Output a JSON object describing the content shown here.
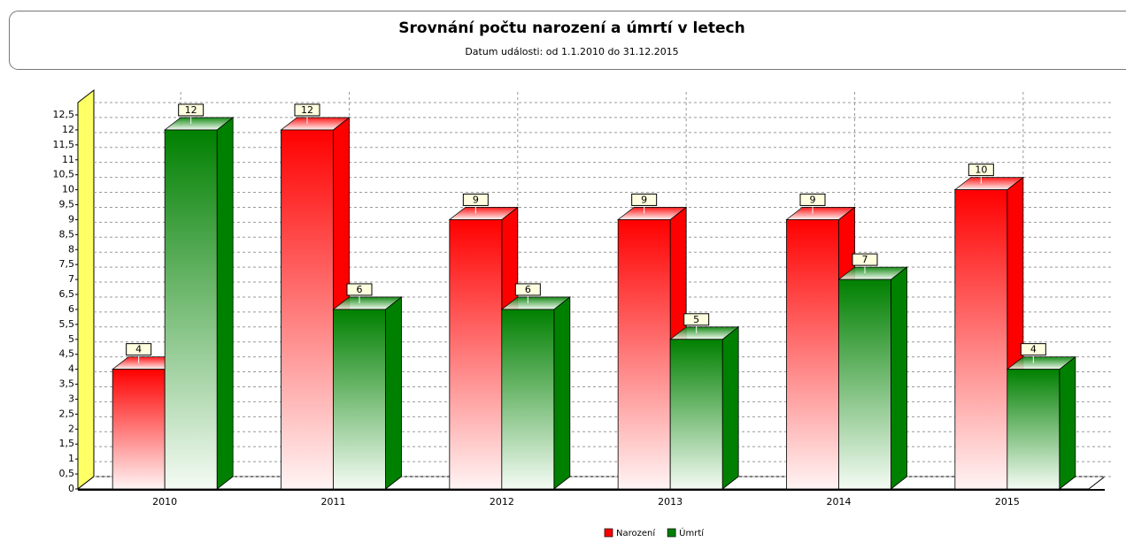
{
  "chart_data": {
    "type": "bar3d",
    "title": "Srovnání počtu narození a úmrtí v letech",
    "subtitle": "Datum události: od 1.1.2010 do 31.12.2015",
    "categories": [
      "2010",
      "2011",
      "2012",
      "2013",
      "2014",
      "2015"
    ],
    "series": [
      {
        "name": "Narození",
        "color": "#ff0000",
        "values": [
          4,
          12,
          9,
          9,
          9,
          10
        ]
      },
      {
        "name": "Úmrtí",
        "color": "#008000",
        "values": [
          12,
          6,
          6,
          5,
          7,
          4
        ]
      }
    ],
    "ylim": [
      0,
      12.5
    ],
    "yticks": [
      0,
      {
        "value": 0.5,
        "label": "0,5"
      },
      1,
      {
        "value": 1.5,
        "label": "1,5"
      },
      2,
      {
        "value": 2.5,
        "label": "2,5"
      },
      3,
      {
        "value": 3.5,
        "label": "3,5"
      },
      4,
      {
        "value": 4.5,
        "label": "4,5"
      },
      5,
      {
        "value": 5.5,
        "label": "5,5"
      },
      6,
      {
        "value": 6.5,
        "label": "6,5"
      },
      7,
      {
        "value": 7.5,
        "label": "7,5"
      },
      8,
      {
        "value": 8.5,
        "label": "8,5"
      },
      9,
      {
        "value": 9.5,
        "label": "9,5"
      },
      10,
      {
        "value": 10.5,
        "label": "10,5"
      },
      11,
      {
        "value": 11.5,
        "label": "11,5"
      },
      12,
      {
        "value": 12.5,
        "label": "12,5"
      }
    ],
    "grid": true,
    "legend": "bottom"
  }
}
